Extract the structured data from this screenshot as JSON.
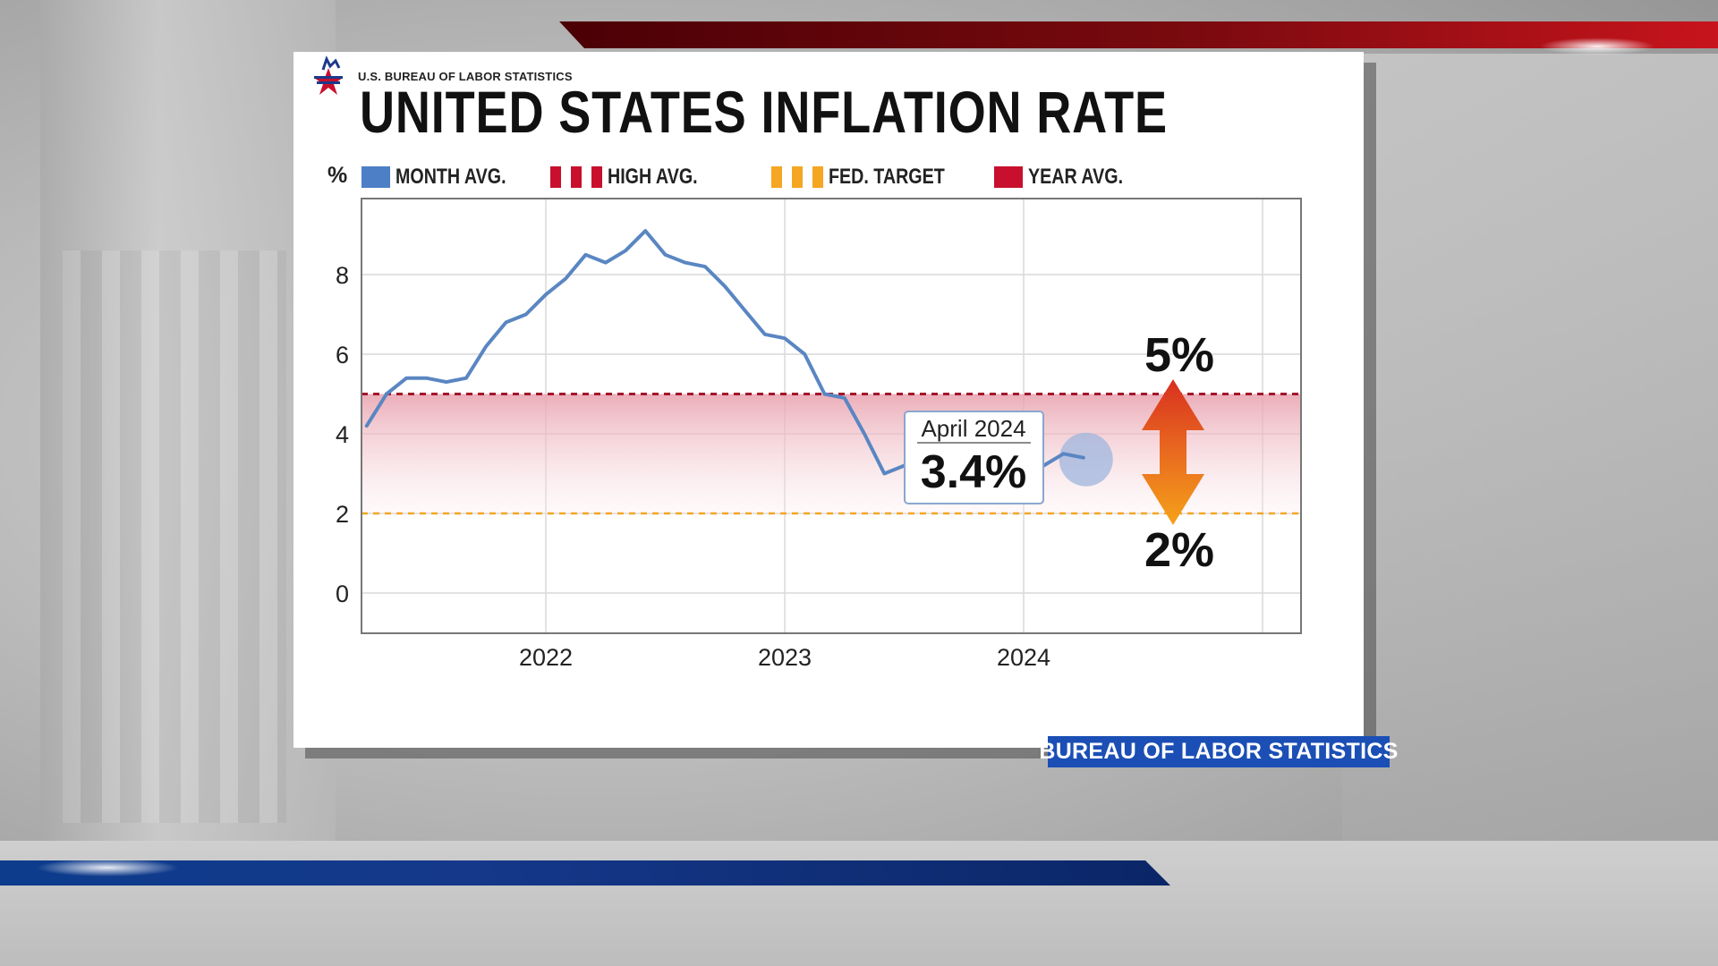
{
  "org_name": "U.S. BUREAU OF LABOR STATISTICS",
  "title": "UNITED STATES INFLATION RATE",
  "legend": {
    "unit": "%",
    "items": [
      {
        "label": "MONTH AVG.",
        "color": "#4d7fc7"
      },
      {
        "label": "HIGH AVG.",
        "color": "#c8102e"
      },
      {
        "label": "FED. TARGET",
        "color": "#f5a623"
      },
      {
        "label": "YEAR AVG.",
        "color": "#c8102e"
      }
    ]
  },
  "callout": {
    "period": "April 2024",
    "value": "3.4%"
  },
  "range_labels": {
    "high": "5%",
    "low": "2%"
  },
  "source_tag": "BUREAU OF LABOR STATISTICS",
  "colors": {
    "line": "#5a86c2",
    "high_line": "#a2162a",
    "target_line": "#f5a623",
    "band": "#e8a0ad"
  },
  "chart_data": {
    "type": "line",
    "title": "UNITED STATES INFLATION RATE",
    "ylabel": "%",
    "ylim": [
      -1,
      10
    ],
    "yticks": [
      0,
      2,
      4,
      6,
      8
    ],
    "xticks": [
      "2022",
      "2023",
      "2024"
    ],
    "grid": true,
    "legend_position": "top",
    "reference_lines": [
      {
        "name": "HIGH AVG.",
        "value": 5.0,
        "style": "dashed"
      },
      {
        "name": "FED. TARGET",
        "value": 2.0,
        "style": "dashed"
      }
    ],
    "series": [
      {
        "name": "MONTH AVG.",
        "points": [
          {
            "x": "2021-04",
            "y": 4.2
          },
          {
            "x": "2021-05",
            "y": 5.0
          },
          {
            "x": "2021-06",
            "y": 5.4
          },
          {
            "x": "2021-07",
            "y": 5.4
          },
          {
            "x": "2021-08",
            "y": 5.3
          },
          {
            "x": "2021-09",
            "y": 5.4
          },
          {
            "x": "2021-10",
            "y": 6.2
          },
          {
            "x": "2021-11",
            "y": 6.8
          },
          {
            "x": "2021-12",
            "y": 7.0
          },
          {
            "x": "2022-01",
            "y": 7.5
          },
          {
            "x": "2022-02",
            "y": 7.9
          },
          {
            "x": "2022-03",
            "y": 8.5
          },
          {
            "x": "2022-04",
            "y": 8.3
          },
          {
            "x": "2022-05",
            "y": 8.6
          },
          {
            "x": "2022-06",
            "y": 9.1
          },
          {
            "x": "2022-07",
            "y": 8.5
          },
          {
            "x": "2022-08",
            "y": 8.3
          },
          {
            "x": "2022-09",
            "y": 8.2
          },
          {
            "x": "2022-10",
            "y": 7.7
          },
          {
            "x": "2022-11",
            "y": 7.1
          },
          {
            "x": "2022-12",
            "y": 6.5
          },
          {
            "x": "2023-01",
            "y": 6.4
          },
          {
            "x": "2023-02",
            "y": 6.0
          },
          {
            "x": "2023-03",
            "y": 5.0
          },
          {
            "x": "2023-04",
            "y": 4.9
          },
          {
            "x": "2023-05",
            "y": 4.0
          },
          {
            "x": "2023-06",
            "y": 3.0
          },
          {
            "x": "2023-07",
            "y": 3.2
          },
          {
            "x": "2023-08",
            "y": 3.7
          },
          {
            "x": "2023-09",
            "y": 3.7
          },
          {
            "x": "2023-10",
            "y": 3.2
          },
          {
            "x": "2023-11",
            "y": 3.1
          },
          {
            "x": "2023-12",
            "y": 3.4
          },
          {
            "x": "2024-01",
            "y": 3.1
          },
          {
            "x": "2024-02",
            "y": 3.2
          },
          {
            "x": "2024-03",
            "y": 3.5
          },
          {
            "x": "2024-04",
            "y": 3.4
          }
        ]
      }
    ]
  }
}
